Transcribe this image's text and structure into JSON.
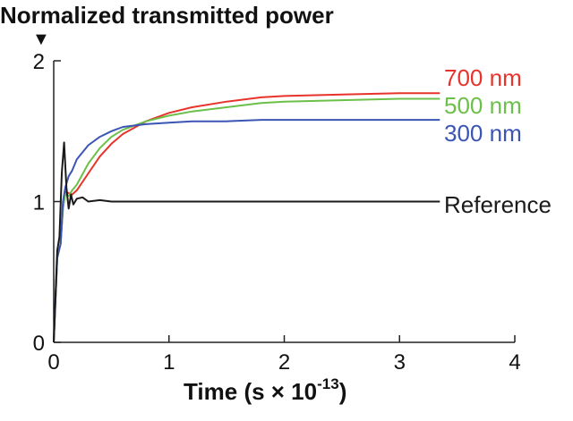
{
  "chart_data": {
    "type": "line",
    "title": "Normalized transmitted power",
    "xlabel": "Time (s × 10",
    "xlabel_superscript": "-13",
    "xlabel_suffix": ")",
    "ylabel": "",
    "xlim": [
      0,
      4
    ],
    "ylim": [
      0,
      2
    ],
    "x_ticks": [
      "0",
      "1",
      "2",
      "3",
      "4"
    ],
    "y_ticks": [
      "0",
      "1",
      "2"
    ],
    "grid": false,
    "legend": "inline-right",
    "series": [
      {
        "name": "700 nm",
        "color": "#e8332c",
        "x": [
          0,
          0.03,
          0.06,
          0.08,
          0.1,
          0.13,
          0.16,
          0.2,
          0.3,
          0.4,
          0.5,
          0.6,
          0.8,
          1.0,
          1.2,
          1.5,
          1.8,
          2.0,
          2.5,
          3.0,
          3.35
        ],
        "y": [
          0,
          0.6,
          0.7,
          0.95,
          1.07,
          1.06,
          1.05,
          1.08,
          1.2,
          1.32,
          1.41,
          1.48,
          1.57,
          1.63,
          1.67,
          1.71,
          1.74,
          1.75,
          1.76,
          1.77,
          1.77
        ]
      },
      {
        "name": "500 nm",
        "color": "#6cc04a",
        "x": [
          0,
          0.03,
          0.06,
          0.08,
          0.1,
          0.13,
          0.16,
          0.2,
          0.3,
          0.4,
          0.5,
          0.6,
          0.8,
          1.0,
          1.2,
          1.5,
          1.8,
          2.0,
          2.5,
          3.0,
          3.35
        ],
        "y": [
          0,
          0.6,
          0.7,
          0.95,
          1.05,
          1.04,
          1.08,
          1.12,
          1.27,
          1.38,
          1.46,
          1.51,
          1.57,
          1.61,
          1.64,
          1.67,
          1.7,
          1.71,
          1.72,
          1.73,
          1.73
        ]
      },
      {
        "name": "300 nm",
        "color": "#3b55b5",
        "x": [
          0,
          0.03,
          0.06,
          0.08,
          0.1,
          0.13,
          0.16,
          0.2,
          0.3,
          0.4,
          0.5,
          0.6,
          0.8,
          1.0,
          1.2,
          1.5,
          1.8,
          2.0,
          2.5,
          3.0,
          3.35
        ],
        "y": [
          0,
          0.6,
          0.7,
          1.0,
          1.1,
          1.18,
          1.22,
          1.3,
          1.4,
          1.46,
          1.5,
          1.53,
          1.55,
          1.56,
          1.57,
          1.57,
          1.58,
          1.58,
          1.58,
          1.58,
          1.58
        ]
      },
      {
        "name": "Reference",
        "color": "#1a1a1a",
        "x": [
          0,
          0.03,
          0.05,
          0.07,
          0.09,
          0.11,
          0.13,
          0.15,
          0.17,
          0.2,
          0.25,
          0.3,
          0.4,
          0.5,
          0.7,
          1.0,
          2.0,
          3.0,
          3.35
        ],
        "y": [
          0,
          0.65,
          0.75,
          1.2,
          1.42,
          1.1,
          0.95,
          1.05,
          0.98,
          1.02,
          1.03,
          1.0,
          1.01,
          1.0,
          1.0,
          1.0,
          1.0,
          1.0,
          1.0
        ]
      }
    ],
    "annotations": [
      {
        "text": "▼",
        "x": 0
      }
    ]
  }
}
